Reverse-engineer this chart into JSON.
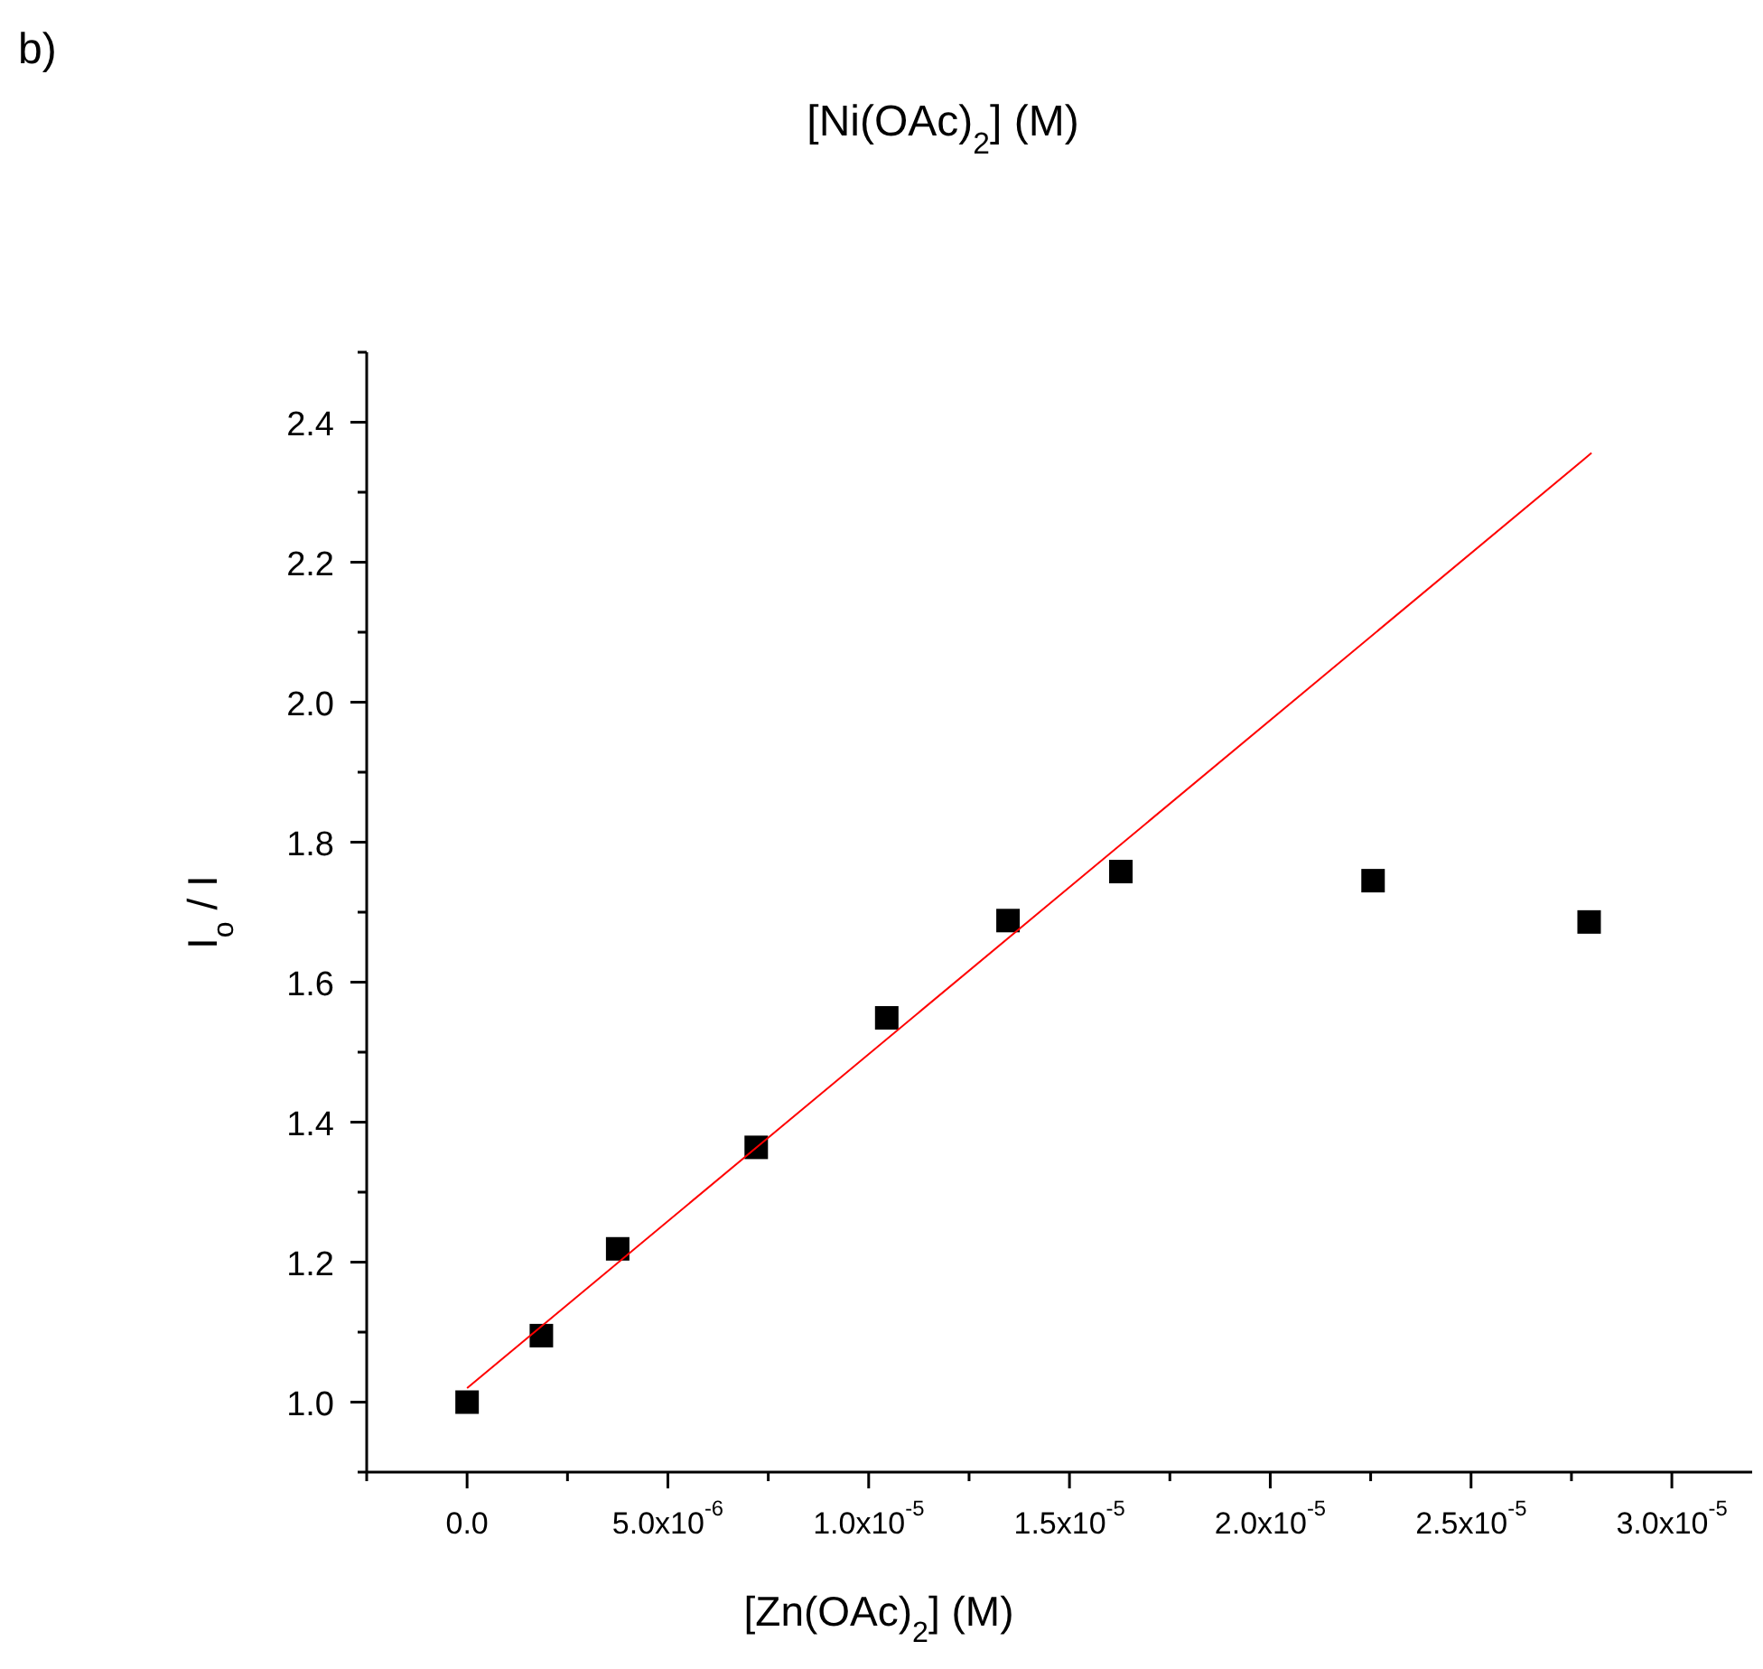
{
  "chart_data": {
    "type": "scatter",
    "xlabel": "[Zn(OAc)$_{2}$] (M)",
    "ylabel": "I$_{o}$ / I",
    "annotations": [
      "b)",
      "[Ni(OAc)$_{2}$] (M)"
    ],
    "xlim": [
      -2.5e-06,
      3.2e-05
    ],
    "ylim": [
      0.9,
      2.5
    ],
    "xticks": [
      {
        "value": -2.5e-06,
        "label": null
      },
      {
        "value": 0,
        "label": "0.0"
      },
      {
        "value": 2.5e-06,
        "label": null
      },
      {
        "value": 5e-06,
        "label": "5.0x10$^{-6}$"
      },
      {
        "value": 7.5e-06,
        "label": null
      },
      {
        "value": 1e-05,
        "label": "1.0x10$^{-5}$"
      },
      {
        "value": 1.25e-05,
        "label": null
      },
      {
        "value": 1.5e-05,
        "label": "1.5x10$^{-5}$"
      },
      {
        "value": 1.75e-05,
        "label": null
      },
      {
        "value": 2e-05,
        "label": "2.0x10$^{-5}$"
      },
      {
        "value": 2.25e-05,
        "label": null
      },
      {
        "value": 2.5e-05,
        "label": "2.5x10$^{-5}$"
      },
      {
        "value": 2.75e-05,
        "label": null
      },
      {
        "value": 3e-05,
        "label": "3.0x10$^{-5}$"
      }
    ],
    "yticks": [
      {
        "value": 0.9,
        "label": null
      },
      {
        "value": 1.0,
        "label": "1.0"
      },
      {
        "value": 1.1,
        "label": null
      },
      {
        "value": 1.2,
        "label": "1.2"
      },
      {
        "value": 1.3,
        "label": null
      },
      {
        "value": 1.4,
        "label": "1.4"
      },
      {
        "value": 1.5,
        "label": null
      },
      {
        "value": 1.6,
        "label": "1.6"
      },
      {
        "value": 1.7,
        "label": null
      },
      {
        "value": 1.8,
        "label": "1.8"
      },
      {
        "value": 1.9,
        "label": null
      },
      {
        "value": 2.0,
        "label": "2.0"
      },
      {
        "value": 2.1,
        "label": null
      },
      {
        "value": 2.2,
        "label": "2.2"
      },
      {
        "value": 2.3,
        "label": null
      },
      {
        "value": 2.4,
        "label": "2.4"
      },
      {
        "value": 2.5,
        "label": null
      }
    ],
    "grid": false,
    "series": [
      {
        "color": "#000000",
        "marker": "square",
        "x": [
          0,
          1.85e-06,
          3.75e-06,
          7.2e-06,
          1.045e-05,
          1.347e-05,
          1.628e-05,
          2.256e-05,
          2.794e-05
        ],
        "values": [
          1.0,
          1.095,
          1.219,
          1.364,
          1.549,
          1.688,
          1.758,
          1.745,
          1.686
        ]
      },
      {
        "type": "line",
        "color": "#ff0000",
        "marker": "none",
        "line_style": "solid",
        "x": [
          0,
          2.8e-05
        ],
        "values": [
          1.02,
          2.356
        ]
      }
    ]
  }
}
